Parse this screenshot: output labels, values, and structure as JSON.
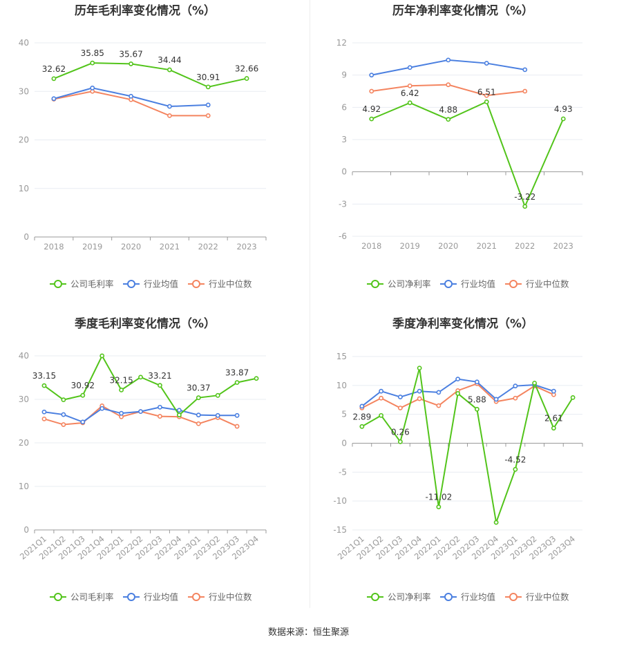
{
  "footer": "数据来源：恒生聚源",
  "colors": {
    "company": "#52c41a",
    "avg": "#4a7fe0",
    "median": "#f4845f",
    "grid": "#e8ecf2",
    "axis": "#999999"
  },
  "chart_data": [
    {
      "type": "line",
      "title": "历年毛利率变化情况（%）",
      "categories": [
        "2018",
        "2019",
        "2020",
        "2021",
        "2022",
        "2023"
      ],
      "ylim": [
        0,
        40
      ],
      "yticks": [
        0,
        10,
        20,
        30,
        40
      ],
      "ytick_labels": [
        "0",
        "10",
        "20",
        "30",
        "40"
      ],
      "legend_position": "bottom",
      "series": [
        {
          "name": "公司毛利率",
          "values": [
            32.62,
            35.85,
            35.67,
            34.44,
            30.91,
            32.66
          ],
          "labels": [
            "32.62",
            "35.85",
            "35.67",
            "34.44",
            "30.91",
            "32.66"
          ]
        },
        {
          "name": "行业均值",
          "values": [
            28.5,
            30.7,
            29.0,
            26.9,
            27.2,
            null
          ]
        },
        {
          "name": "行业中位数",
          "values": [
            28.4,
            30.0,
            28.3,
            25.0,
            25.0,
            null
          ]
        }
      ]
    },
    {
      "type": "line",
      "title": "历年净利率变化情况（%）",
      "categories": [
        "2018",
        "2019",
        "2020",
        "2021",
        "2022",
        "2023"
      ],
      "ylim": [
        -6,
        12
      ],
      "yticks": [
        -6,
        -3,
        0,
        3,
        6,
        9,
        12
      ],
      "ytick_labels": [
        "-6",
        "-3",
        "0",
        "3",
        "6",
        "9",
        "12"
      ],
      "legend_position": "bottom",
      "series": [
        {
          "name": "公司净利率",
          "values": [
            4.92,
            6.42,
            4.88,
            6.51,
            -3.22,
            4.93
          ],
          "labels": [
            "4.92",
            "6.42",
            "4.88",
            "6.51",
            "-3.22",
            "4.93"
          ]
        },
        {
          "name": "行业均值",
          "values": [
            9.0,
            9.7,
            10.4,
            10.1,
            9.5,
            null
          ]
        },
        {
          "name": "行业中位数",
          "values": [
            7.5,
            8.0,
            8.1,
            7.1,
            7.5,
            null
          ]
        }
      ]
    },
    {
      "type": "line",
      "title": "季度毛利率变化情况（%）",
      "categories": [
        "2021Q1",
        "2021Q2",
        "2021Q3",
        "2021Q4",
        "2022Q1",
        "2022Q2",
        "2022Q3",
        "2022Q4",
        "2023Q1",
        "2023Q2",
        "2023Q3",
        "2023Q4"
      ],
      "ylim": [
        0,
        40
      ],
      "yticks": [
        0,
        10,
        20,
        30,
        40
      ],
      "ytick_labels": [
        "0",
        "10",
        "20",
        "30",
        "40"
      ],
      "legend_position": "bottom",
      "series": [
        {
          "name": "公司毛利率",
          "values": [
            33.15,
            29.9,
            30.92,
            40.0,
            32.15,
            35.1,
            33.21,
            26.4,
            30.37,
            30.9,
            33.87,
            34.8
          ],
          "labels": [
            "33.15",
            "",
            "30.92",
            "",
            "32.15",
            "",
            "33.21",
            "",
            "30.37",
            "",
            "33.87",
            ""
          ]
        },
        {
          "name": "行业均值",
          "values": [
            27.1,
            26.5,
            24.8,
            27.9,
            26.8,
            27.2,
            28.2,
            27.5,
            26.4,
            26.3,
            26.3,
            null
          ]
        },
        {
          "name": "行业中位数",
          "values": [
            25.5,
            24.2,
            24.6,
            28.5,
            26.0,
            27.2,
            26.1,
            26.0,
            24.4,
            25.8,
            23.8,
            null
          ]
        }
      ]
    },
    {
      "type": "line",
      "title": "季度净利率变化情况（%）",
      "categories": [
        "2021Q1",
        "2021Q2",
        "2021Q3",
        "2021Q4",
        "2022Q1",
        "2022Q2",
        "2022Q3",
        "2022Q4",
        "2023Q1",
        "2023Q2",
        "2023Q3",
        "2023Q4"
      ],
      "ylim": [
        -15,
        15
      ],
      "yticks": [
        -15,
        -10,
        -5,
        0,
        5,
        10,
        15
      ],
      "ytick_labels": [
        "-15",
        "-10",
        "-5",
        "0",
        "5",
        "10",
        "15"
      ],
      "legend_position": "bottom",
      "series": [
        {
          "name": "公司净利率",
          "values": [
            2.89,
            4.8,
            0.26,
            13.0,
            -11.02,
            8.6,
            5.88,
            -13.7,
            -4.52,
            10.4,
            2.61,
            7.9
          ],
          "labels": [
            "2.89",
            "",
            "0.26",
            "",
            "-11.02",
            "",
            "5.88",
            "",
            "-4.52",
            "",
            "2.61",
            ""
          ]
        },
        {
          "name": "行业均值",
          "values": [
            6.4,
            9.0,
            8.0,
            9.0,
            8.8,
            11.1,
            10.6,
            7.6,
            9.9,
            10.1,
            9.0,
            null
          ]
        },
        {
          "name": "行业中位数",
          "values": [
            6.1,
            7.8,
            6.1,
            7.7,
            6.5,
            9.1,
            10.3,
            7.2,
            7.8,
            9.9,
            8.4,
            null
          ]
        }
      ]
    }
  ]
}
